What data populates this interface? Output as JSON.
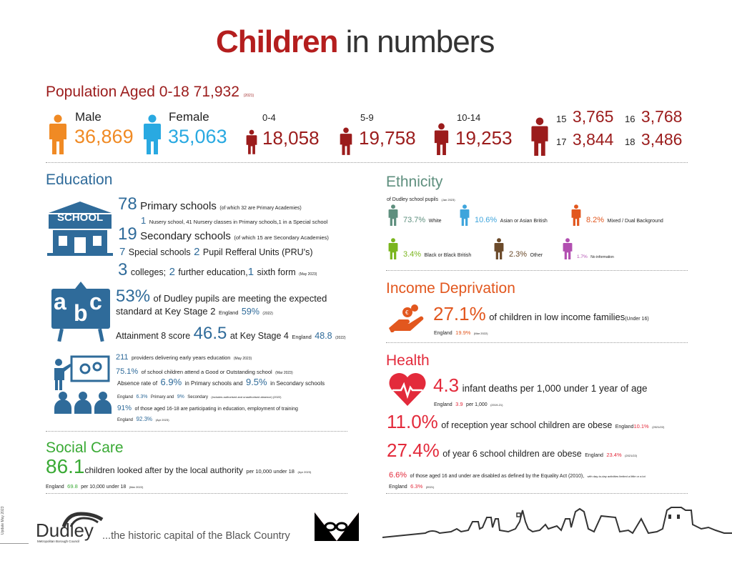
{
  "title": {
    "bold": "Children",
    "rest": " in numbers"
  },
  "population": {
    "heading": "Population Aged 0-18 71,932",
    "heading_year": "(2021)",
    "male": {
      "label": "Male",
      "value": "36,869"
    },
    "female": {
      "label": "Female",
      "value": "35,063"
    },
    "age_0_4": {
      "label": "0-4",
      "value": "18,058"
    },
    "age_5_9": {
      "label": "5-9",
      "value": "19,758"
    },
    "age_10_14": {
      "label": "10-14",
      "value": "19,253"
    },
    "age15": {
      "label": "15",
      "value": "3,765"
    },
    "age16": {
      "label": "16",
      "value": "3,768"
    },
    "age17": {
      "label": "17",
      "value": "3,844"
    },
    "age18": {
      "label": "18",
      "value": "3,486"
    }
  },
  "education": {
    "heading": "Education",
    "school_icon_text": "SCHOOL",
    "primary_num": "78",
    "primary_text": "Primary schools",
    "primary_note": "(of which 32 are Primary Academies)",
    "nursery_num": "1",
    "nursery_text": "Nusery school, 41 Nursery classes in Primary schools,1 in a Special school",
    "secondary_num": "19",
    "secondary_text": "Secondary schools",
    "secondary_note": "(of which 15 are Secondary Academies)",
    "special_num": "7",
    "special_text": "Special schools",
    "pru_num": "2",
    "pru_text": "Pupil Refferal Units (PRU's)",
    "colleges_num": "3",
    "colleges_text": "colleges;",
    "further_num": "2",
    "further_text": "further  education,",
    "sixth_num": "1",
    "sixth_text": "sixth form",
    "sixth_date": "(May 2023)",
    "ks2_pct": "53%",
    "ks2_text1": "of Dudley pupils are meeting the expected",
    "ks2_text2": "standard at Key Stage 2",
    "ks2_eng_label": "England",
    "ks2_eng_value": "59%",
    "ks2_eng_year": "(2022)",
    "att8_text": "Attainment 8 score",
    "att8_value": "46.5",
    "att8_text2": "at Key Stage 4",
    "att8_eng_label": "England",
    "att8_eng_value": "48.8",
    "att8_eng_year": "(2022)",
    "providers_num": "211",
    "providers_text": "providers delivering early years education",
    "providers_date": "(May 2023)",
    "good_pct": "75.1%",
    "good_text": "of school children attend a Good or Outstanding school",
    "good_date": "(Mar 2023)",
    "abs_text1": "Absence rate of",
    "abs_primary": "6.9%",
    "abs_text2": "in Primary schools and",
    "abs_secondary": "9.5%",
    "abs_text3": "in Secondary schools",
    "abs_eng_label": "England",
    "abs_eng_primary": "6.3%",
    "abs_eng_text1": "Primary and",
    "abs_eng_secondary": "9%",
    "abs_eng_text2": "Secondary",
    "abs_eng_note": "(includes authorised and unauthorised absence) (2022)",
    "neet_pct": "91%",
    "neet_text": "of those aged 16-18 are participating in education, employment of training",
    "neet_eng_label": "England",
    "neet_eng_value": "92.3%",
    "neet_eng_date": "(Apr 2023)",
    "abc": {
      "a": "a",
      "b": "b",
      "c": "c"
    }
  },
  "social_care": {
    "heading": "Social Care",
    "value": "86.1",
    "text": "children looked after by the local authority",
    "unit": "per 10,000 under 18",
    "date": "(Apr 2023)",
    "eng_label": "England",
    "eng_value": "69.8",
    "eng_unit": "per 10,000 under 18",
    "eng_date": "(Mar 2022)"
  },
  "ethnicity": {
    "heading": "Ethnicity",
    "sub": "of Dudley school pupils",
    "sub_date": "(Jan 2023)",
    "white_pct": "73.7%",
    "white_label": "White",
    "asian_pct": "10.6%",
    "asian_label": "Asian or Asian British",
    "mixed_pct": "8.2%",
    "mixed_label": "Mixed / Dual Background",
    "black_pct": "3.4%",
    "black_label": "Black or Black British",
    "other_pct": "2.3%",
    "other_label": "Other",
    "noinfo_pct": "1.7%",
    "noinfo_label": "No information"
  },
  "income": {
    "heading": "Income Deprivation",
    "value": "27.1%",
    "text": "of children in low income families",
    "note": "(Under 16)",
    "eng_label": "England",
    "eng_value": "19.9%",
    "eng_date": "(Mar 2022)"
  },
  "health": {
    "heading": "Health",
    "infant_value": "4.3",
    "infant_text": "infant deaths per 1,000 under 1 year of age",
    "infant_eng_label": "England",
    "infant_eng_value": "3.9",
    "infant_eng_unit": "per 1,000",
    "infant_eng_year": "(2019-21)",
    "reception_value": "11.0%",
    "reception_text": "of reception year school children are obese",
    "reception_eng_label": "England",
    "reception_eng_value": "10.1%",
    "reception_eng_year": "(2021/22)",
    "y6_value": "27.4%",
    "y6_text": "of year 6 school children are obese",
    "y6_eng_label": "England",
    "y6_eng_value": "23.4%",
    "y6_eng_year": "(2021/22)",
    "disabled_pct": "6.6%",
    "disabled_text": "of those aged 16 and under are disabled as defined by the Equality Act (2010),",
    "disabled_note": "with day-to-day activities limited a little or a lot",
    "disabled_eng_label": "England",
    "disabled_eng_value": "6.3%",
    "disabled_eng_year": "(2021)"
  },
  "footer": {
    "update": "Update May 2023",
    "logo_name": "Dudley",
    "logo_sub": "Metropolitan Borough Council",
    "tagline": "...the historic capital of the Black Country"
  },
  "colors": {
    "red": "#b41e1e",
    "blue": "#2f6b9a",
    "male": "#f08a24",
    "female": "#29a9e1",
    "dark_red": "#9b1c1c",
    "white_eth": "#5e8f7e",
    "asian": "#3fa5dc",
    "mixed": "#e2571e",
    "black": "#7ab51d",
    "other": "#6b4a2a",
    "noinfo": "#b24fb1",
    "green": "#3aaa35"
  }
}
